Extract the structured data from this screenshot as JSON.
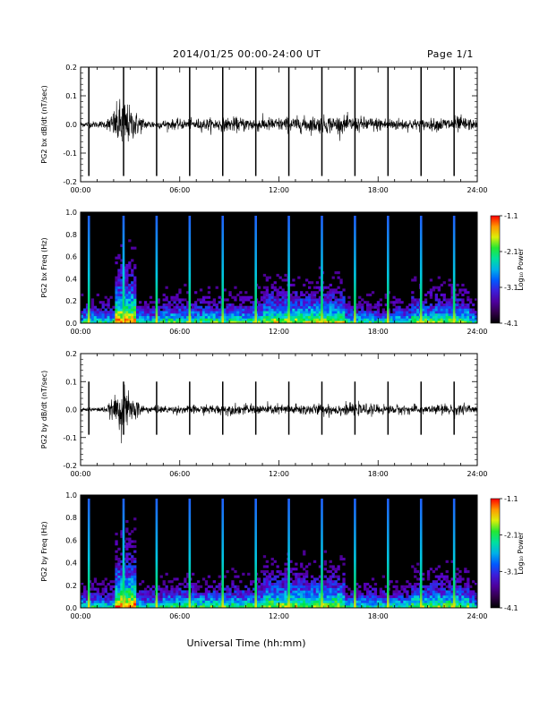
{
  "header": {
    "title": "2014/01/25  00:00-24:00 UT",
    "page": "Page 1/1"
  },
  "chart_data": [
    {
      "type": "line",
      "ylabel": "PG2 bx dB/dt (nT/sec)",
      "xlim": [
        0,
        24
      ],
      "ylim": [
        -0.2,
        0.2
      ],
      "x_ticks": [
        "00:00",
        "06:00",
        "12:00",
        "18:00",
        "24:00"
      ],
      "y_ticks": [
        "-0.2",
        "-0.1",
        "0.0",
        "0.1",
        "0.2"
      ],
      "spike_times_hours": [
        0.5,
        2.6,
        4.6,
        6.6,
        8.6,
        10.6,
        12.6,
        14.6,
        16.6,
        18.6,
        20.6,
        22.6
      ],
      "amplitude_envelope": [
        {
          "x": 0,
          "y": 0.008
        },
        {
          "x": 1.5,
          "y": 0.01
        },
        {
          "x": 2.0,
          "y": 0.04
        },
        {
          "x": 2.5,
          "y": 0.08
        },
        {
          "x": 3.0,
          "y": 0.05
        },
        {
          "x": 4.0,
          "y": 0.012
        },
        {
          "x": 6.5,
          "y": 0.015
        },
        {
          "x": 9.0,
          "y": 0.02
        },
        {
          "x": 12.0,
          "y": 0.02
        },
        {
          "x": 15.0,
          "y": 0.025
        },
        {
          "x": 18.0,
          "y": 0.02
        },
        {
          "x": 21.0,
          "y": 0.015
        },
        {
          "x": 23.0,
          "y": 0.025
        },
        {
          "x": 24.0,
          "y": 0.01
        }
      ]
    },
    {
      "type": "heatmap",
      "ylabel": "PG2 bx Freq (Hz)",
      "colorbar_label": "Log₁₀ Power",
      "xlim": [
        0,
        24
      ],
      "ylim": [
        0,
        1.0
      ],
      "x_ticks": [
        "00:00",
        "06:00",
        "12:00",
        "18:00",
        "24:00"
      ],
      "y_ticks": [
        "0.0",
        "0.2",
        "0.4",
        "0.6",
        "0.8",
        "1.0"
      ],
      "color_range": [
        -4.1,
        -1.1
      ],
      "colorbar_ticks": [
        "-1.1",
        "-2.1",
        "-3.1",
        "-4.1"
      ],
      "spike_times_hours": [
        0.5,
        2.6,
        4.6,
        6.6,
        8.6,
        10.6,
        12.6,
        14.6,
        16.6,
        18.6,
        20.6,
        22.6
      ]
    },
    {
      "type": "line",
      "ylabel": "PG2 by dB/dt (nT/sec)",
      "xlim": [
        0,
        24
      ],
      "ylim": [
        -0.2,
        0.2
      ],
      "x_ticks": [
        "00:00",
        "06:00",
        "12:00",
        "18:00",
        "24:00"
      ],
      "y_ticks": [
        "-0.2",
        "-0.1",
        "0.0",
        "0.1",
        "0.2"
      ],
      "spike_times_hours": [
        0.5,
        2.6,
        4.6,
        6.6,
        8.6,
        10.6,
        12.6,
        14.6,
        16.6,
        18.6,
        20.6,
        22.6
      ],
      "amplitude_envelope": [
        {
          "x": 0,
          "y": 0.006
        },
        {
          "x": 1.5,
          "y": 0.008
        },
        {
          "x": 2.0,
          "y": 0.03
        },
        {
          "x": 2.5,
          "y": 0.07
        },
        {
          "x": 3.0,
          "y": 0.04
        },
        {
          "x": 4.0,
          "y": 0.01
        },
        {
          "x": 6.5,
          "y": 0.012
        },
        {
          "x": 9.0,
          "y": 0.015
        },
        {
          "x": 12.0,
          "y": 0.015
        },
        {
          "x": 15.0,
          "y": 0.018
        },
        {
          "x": 18.0,
          "y": 0.015
        },
        {
          "x": 21.0,
          "y": 0.012
        },
        {
          "x": 23.0,
          "y": 0.02
        },
        {
          "x": 24.0,
          "y": 0.008
        }
      ]
    },
    {
      "type": "heatmap",
      "ylabel": "PG2 by Freq (Hz)",
      "colorbar_label": "Log₁₀ Power",
      "xlim": [
        0,
        24
      ],
      "ylim": [
        0,
        1.0
      ],
      "x_ticks": [
        "00:00",
        "06:00",
        "12:00",
        "18:00",
        "24:00"
      ],
      "y_ticks": [
        "0.0",
        "0.2",
        "0.4",
        "0.6",
        "0.8",
        "1.0"
      ],
      "color_range": [
        -4.1,
        -1.1
      ],
      "colorbar_ticks": [
        "-1.1",
        "-2.1",
        "-3.1",
        "-4.1"
      ],
      "spike_times_hours": [
        0.5,
        2.6,
        4.6,
        6.6,
        8.6,
        10.6,
        12.6,
        14.6,
        16.6,
        18.6,
        20.6,
        22.6
      ]
    }
  ],
  "xlabel": "Universal Time (hh:mm)"
}
